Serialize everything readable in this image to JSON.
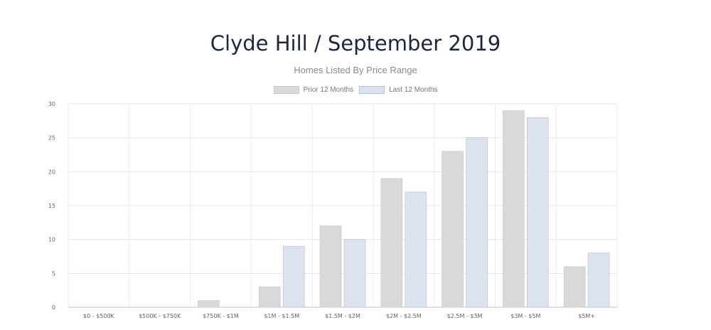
{
  "chart_data": {
    "type": "bar",
    "title": "Clyde Hill / September 2019",
    "subtitle": "Homes Listed By Price Range",
    "categories": [
      "$0 - $500K",
      "$500K - $750K",
      "$750K - $1M",
      "$1M - $1.5M",
      "$1.5M - $2M",
      "$2M - $2.5M",
      "$2.5M - $3M",
      "$3M - $5M",
      "$5M+"
    ],
    "series": [
      {
        "name": "Prior 12 Months",
        "color": "#d9d9d9",
        "stroke": "#c9c9c9",
        "values": [
          0,
          0,
          1,
          3,
          12,
          19,
          23,
          29,
          6
        ]
      },
      {
        "name": "Last 12 Months",
        "color": "#dce3ef",
        "stroke": "#b5c1d6",
        "values": [
          0,
          0,
          0,
          9,
          10,
          17,
          25,
          28,
          8
        ]
      }
    ],
    "yticks": [
      0,
      5,
      10,
      15,
      20,
      25,
      30
    ],
    "ylim": [
      0,
      30
    ],
    "grid": true,
    "legend": "top"
  }
}
